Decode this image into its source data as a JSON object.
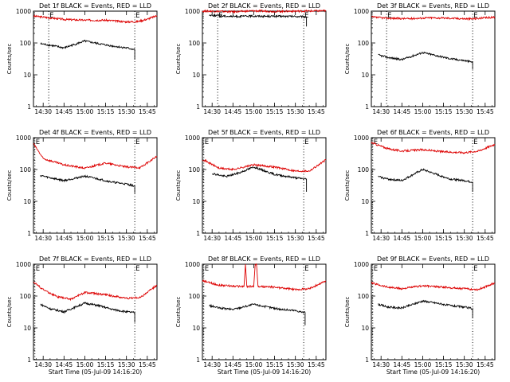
{
  "page": {
    "background": "#ffffff",
    "event_color": "#000000",
    "lld_color": "#dd0000"
  },
  "chart_data": [
    {
      "type": "line",
      "title": "Det 1f BLACK = Events, RED = LLD",
      "xlabel": "",
      "ylabel": "Counts/sec",
      "yscale": "log",
      "ylim": [
        1,
        1000
      ],
      "xlim": [
        "14:23",
        "15:52"
      ],
      "x_ticks": [
        "14:30",
        "14:45",
        "15:00",
        "15:15",
        "15:30",
        "15:45"
      ],
      "y_ticks": [
        "1",
        "10",
        "100",
        "1000"
      ],
      "markers": [
        {
          "label": "E",
          "x": "14:34"
        },
        {
          "label": "E",
          "x": "15:36"
        }
      ],
      "series": [
        {
          "color": "#dd0000",
          "x": [
            "14:23",
            "14:30",
            "14:45",
            "15:00",
            "15:15",
            "15:30",
            "15:38",
            "15:45",
            "15:52"
          ],
          "y": [
            700,
            650,
            550,
            520,
            520,
            460,
            470,
            560,
            720
          ]
        },
        {
          "color": "#000000",
          "x": [
            "14:28",
            "14:35",
            "14:45",
            "15:00",
            "15:10",
            "15:20",
            "15:30",
            "15:36"
          ],
          "y": [
            95,
            85,
            70,
            115,
            95,
            80,
            70,
            62
          ],
          "end_drop_to": 30
        }
      ]
    },
    {
      "type": "line",
      "title": "Det 2f BLACK = Events, RED = LLD",
      "xlabel": "",
      "ylabel": "Counts/sec",
      "yscale": "log",
      "ylim": [
        1,
        1000
      ],
      "xlim": [
        "14:23",
        "15:52"
      ],
      "x_ticks": [
        "14:30",
        "14:45",
        "15:00",
        "15:15",
        "15:30",
        "15:45"
      ],
      "y_ticks": [
        "1",
        "10",
        "100",
        "1000"
      ],
      "markers": [
        {
          "label": "E",
          "x": "14:34"
        },
        {
          "label": "E",
          "x": "15:36"
        }
      ],
      "series": [
        {
          "color": "#dd0000",
          "x": [
            "14:23",
            "14:30",
            "14:45",
            "15:00",
            "15:15",
            "15:30",
            "15:45",
            "15:52"
          ],
          "y": [
            1000,
            1000,
            950,
            1020,
            980,
            1000,
            1010,
            1030
          ]
        },
        {
          "color": "#000000",
          "x": [
            "14:28",
            "14:35",
            "14:45",
            "15:00",
            "15:15",
            "15:30",
            "15:38"
          ],
          "y": [
            750,
            720,
            680,
            700,
            690,
            680,
            660
          ],
          "end_drop_to": 330
        }
      ]
    },
    {
      "type": "line",
      "title": "Det 3f BLACK = Events, RED = LLD",
      "xlabel": "",
      "ylabel": "Counts/sec",
      "yscale": "log",
      "ylim": [
        1,
        1000
      ],
      "xlim": [
        "14:23",
        "15:52"
      ],
      "x_ticks": [
        "14:30",
        "14:45",
        "15:00",
        "15:15",
        "15:30",
        "15:45"
      ],
      "y_ticks": [
        "1",
        "10",
        "100",
        "1000"
      ],
      "markers": [
        {
          "label": "E",
          "x": "14:34"
        },
        {
          "label": "E",
          "x": "15:36"
        }
      ],
      "series": [
        {
          "color": "#dd0000",
          "x": [
            "14:23",
            "14:35",
            "14:50",
            "15:05",
            "15:20",
            "15:35",
            "15:52"
          ],
          "y": [
            650,
            600,
            580,
            620,
            600,
            570,
            650
          ]
        },
        {
          "color": "#000000",
          "x": [
            "14:28",
            "14:35",
            "14:45",
            "15:00",
            "15:10",
            "15:20",
            "15:30",
            "15:36"
          ],
          "y": [
            42,
            35,
            30,
            50,
            40,
            32,
            28,
            25
          ],
          "end_drop_to": 15
        }
      ]
    },
    {
      "type": "line",
      "title": "Det 4f BLACK = Events, RED = LLD",
      "xlabel": "",
      "ylabel": "Counts/sec",
      "yscale": "log",
      "ylim": [
        1,
        1000
      ],
      "xlim": [
        "14:23",
        "15:52"
      ],
      "x_ticks": [
        "14:30",
        "14:45",
        "15:00",
        "15:15",
        "15:30",
        "15:45"
      ],
      "y_ticks": [
        "1",
        "10",
        "100",
        "1000"
      ],
      "markers": [
        {
          "label": "E",
          "x": "14:24"
        },
        {
          "label": "E",
          "x": "15:36"
        }
      ],
      "series": [
        {
          "color": "#dd0000",
          "x": [
            "14:23",
            "14:30",
            "14:45",
            "15:00",
            "15:15",
            "15:30",
            "15:40",
            "15:52"
          ],
          "y": [
            650,
            220,
            140,
            110,
            160,
            120,
            115,
            260
          ]
        },
        {
          "color": "#000000",
          "x": [
            "14:28",
            "14:35",
            "14:45",
            "15:00",
            "15:10",
            "15:20",
            "15:30",
            "15:36"
          ],
          "y": [
            65,
            55,
            45,
            62,
            50,
            40,
            35,
            30
          ],
          "end_drop_to": 18
        }
      ]
    },
    {
      "type": "line",
      "title": "Det 5f BLACK = Events, RED = LLD",
      "xlabel": "",
      "ylabel": "Counts/sec",
      "yscale": "log",
      "ylim": [
        1,
        1000
      ],
      "xlim": [
        "14:23",
        "15:52"
      ],
      "x_ticks": [
        "14:30",
        "14:45",
        "15:00",
        "15:15",
        "15:30",
        "15:45"
      ],
      "y_ticks": [
        "1",
        "10",
        "100",
        "1000"
      ],
      "markers": [
        {
          "label": "E",
          "x": "14:24"
        },
        {
          "label": "E",
          "x": "15:36"
        }
      ],
      "series": [
        {
          "color": "#dd0000",
          "x": [
            "14:23",
            "14:35",
            "14:45",
            "15:00",
            "15:15",
            "15:30",
            "15:40",
            "15:52"
          ],
          "y": [
            210,
            110,
            100,
            140,
            120,
            90,
            90,
            200
          ]
        },
        {
          "color": "#000000",
          "x": [
            "14:30",
            "14:40",
            "14:50",
            "15:00",
            "15:15",
            "15:30",
            "15:38"
          ],
          "y": [
            75,
            60,
            80,
            120,
            70,
            55,
            50
          ],
          "end_drop_to": 20
        }
      ]
    },
    {
      "type": "line",
      "title": "Det 6f BLACK = Events, RED = LLD",
      "xlabel": "",
      "ylabel": "Counts/sec",
      "yscale": "log",
      "ylim": [
        1,
        1000
      ],
      "xlim": [
        "14:23",
        "15:52"
      ],
      "x_ticks": [
        "14:30",
        "14:45",
        "15:00",
        "15:15",
        "15:30",
        "15:45"
      ],
      "y_ticks": [
        "1",
        "10",
        "100",
        "1000"
      ],
      "markers": [
        {
          "label": "E",
          "x": "14:24"
        },
        {
          "label": "E",
          "x": "15:36"
        }
      ],
      "series": [
        {
          "color": "#dd0000",
          "x": [
            "14:23",
            "14:35",
            "14:45",
            "15:00",
            "15:15",
            "15:30",
            "15:40",
            "15:52"
          ],
          "y": [
            700,
            450,
            380,
            420,
            360,
            340,
            380,
            620
          ]
        },
        {
          "color": "#000000",
          "x": [
            "14:28",
            "14:35",
            "14:45",
            "15:00",
            "15:10",
            "15:20",
            "15:30",
            "15:36"
          ],
          "y": [
            60,
            50,
            45,
            100,
            70,
            50,
            45,
            40
          ],
          "end_drop_to": 20
        }
      ]
    },
    {
      "type": "line",
      "title": "Det 7f BLACK = Events, RED = LLD",
      "xlabel": "Start Time (05-Jul-09 14:16:20)",
      "ylabel": "Counts/sec",
      "yscale": "log",
      "ylim": [
        1,
        1000
      ],
      "xlim": [
        "14:23",
        "15:52"
      ],
      "x_ticks": [
        "14:30",
        "14:45",
        "15:00",
        "15:15",
        "15:30",
        "15:45"
      ],
      "y_ticks": [
        "1",
        "10",
        "100",
        "1000"
      ],
      "markers": [
        {
          "label": "E",
          "x": "14:24"
        },
        {
          "label": "E",
          "x": "15:36"
        }
      ],
      "series": [
        {
          "color": "#dd0000",
          "x": [
            "14:23",
            "14:30",
            "14:40",
            "14:50",
            "15:00",
            "15:15",
            "15:30",
            "15:40",
            "15:52"
          ],
          "y": [
            280,
            160,
            95,
            80,
            130,
            110,
            85,
            90,
            220
          ]
        },
        {
          "color": "#000000",
          "x": [
            "14:28",
            "14:35",
            "14:45",
            "15:00",
            "15:10",
            "15:20",
            "15:30",
            "15:36"
          ],
          "y": [
            55,
            40,
            32,
            60,
            50,
            38,
            32,
            30
          ],
          "end_drop_to": 15
        }
      ]
    },
    {
      "type": "line",
      "title": "Det 8f BLACK = Events, RED = LLD",
      "xlabel": "Start Time (05-Jul-09 14:16:20)",
      "ylabel": "Counts/sec",
      "yscale": "log",
      "ylim": [
        1,
        1000
      ],
      "xlim": [
        "14:23",
        "15:52"
      ],
      "x_ticks": [
        "14:30",
        "14:45",
        "15:00",
        "15:15",
        "15:30",
        "15:45"
      ],
      "y_ticks": [
        "1",
        "10",
        "100",
        "1000"
      ],
      "markers": [
        {
          "label": "E",
          "x": "14:24"
        },
        {
          "label": "E",
          "x": "15:36"
        }
      ],
      "series": [
        {
          "color": "#dd0000",
          "x": [
            "14:23",
            "14:35",
            "14:50",
            "14:53",
            "14:54",
            "14:55",
            "15:00",
            "15:01",
            "15:02",
            "15:03",
            "15:15",
            "15:30",
            "15:40",
            "15:52"
          ],
          "y": [
            300,
            220,
            200,
            200,
            1000,
            200,
            200,
            1000,
            1000,
            200,
            190,
            160,
            170,
            300
          ]
        },
        {
          "color": "#000000",
          "x": [
            "14:28",
            "14:35",
            "14:45",
            "15:00",
            "15:10",
            "15:20",
            "15:30",
            "15:37"
          ],
          "y": [
            50,
            42,
            38,
            55,
            45,
            38,
            35,
            30
          ],
          "end_drop_to": 12
        }
      ]
    },
    {
      "type": "line",
      "title": "Det 9f BLACK = Events, RED = LLD",
      "xlabel": "Start Time (05-Jul-09 14:16:20)",
      "ylabel": "Counts/sec",
      "yscale": "log",
      "ylim": [
        1,
        1000
      ],
      "xlim": [
        "14:23",
        "15:52"
      ],
      "x_ticks": [
        "14:30",
        "14:45",
        "15:00",
        "15:15",
        "15:30",
        "15:45"
      ],
      "y_ticks": [
        "1",
        "10",
        "100",
        "1000"
      ],
      "markers": [
        {
          "label": "E",
          "x": "14:24"
        },
        {
          "label": "E",
          "x": "15:36"
        }
      ],
      "series": [
        {
          "color": "#dd0000",
          "x": [
            "14:23",
            "14:35",
            "14:45",
            "15:00",
            "15:15",
            "15:30",
            "15:40",
            "15:52"
          ],
          "y": [
            260,
            190,
            170,
            210,
            190,
            170,
            160,
            260
          ]
        },
        {
          "color": "#000000",
          "x": [
            "14:28",
            "14:35",
            "14:45",
            "15:00",
            "15:10",
            "15:20",
            "15:30",
            "15:36"
          ],
          "y": [
            55,
            45,
            42,
            70,
            60,
            50,
            45,
            40
          ],
          "end_drop_to": 20
        }
      ]
    }
  ]
}
